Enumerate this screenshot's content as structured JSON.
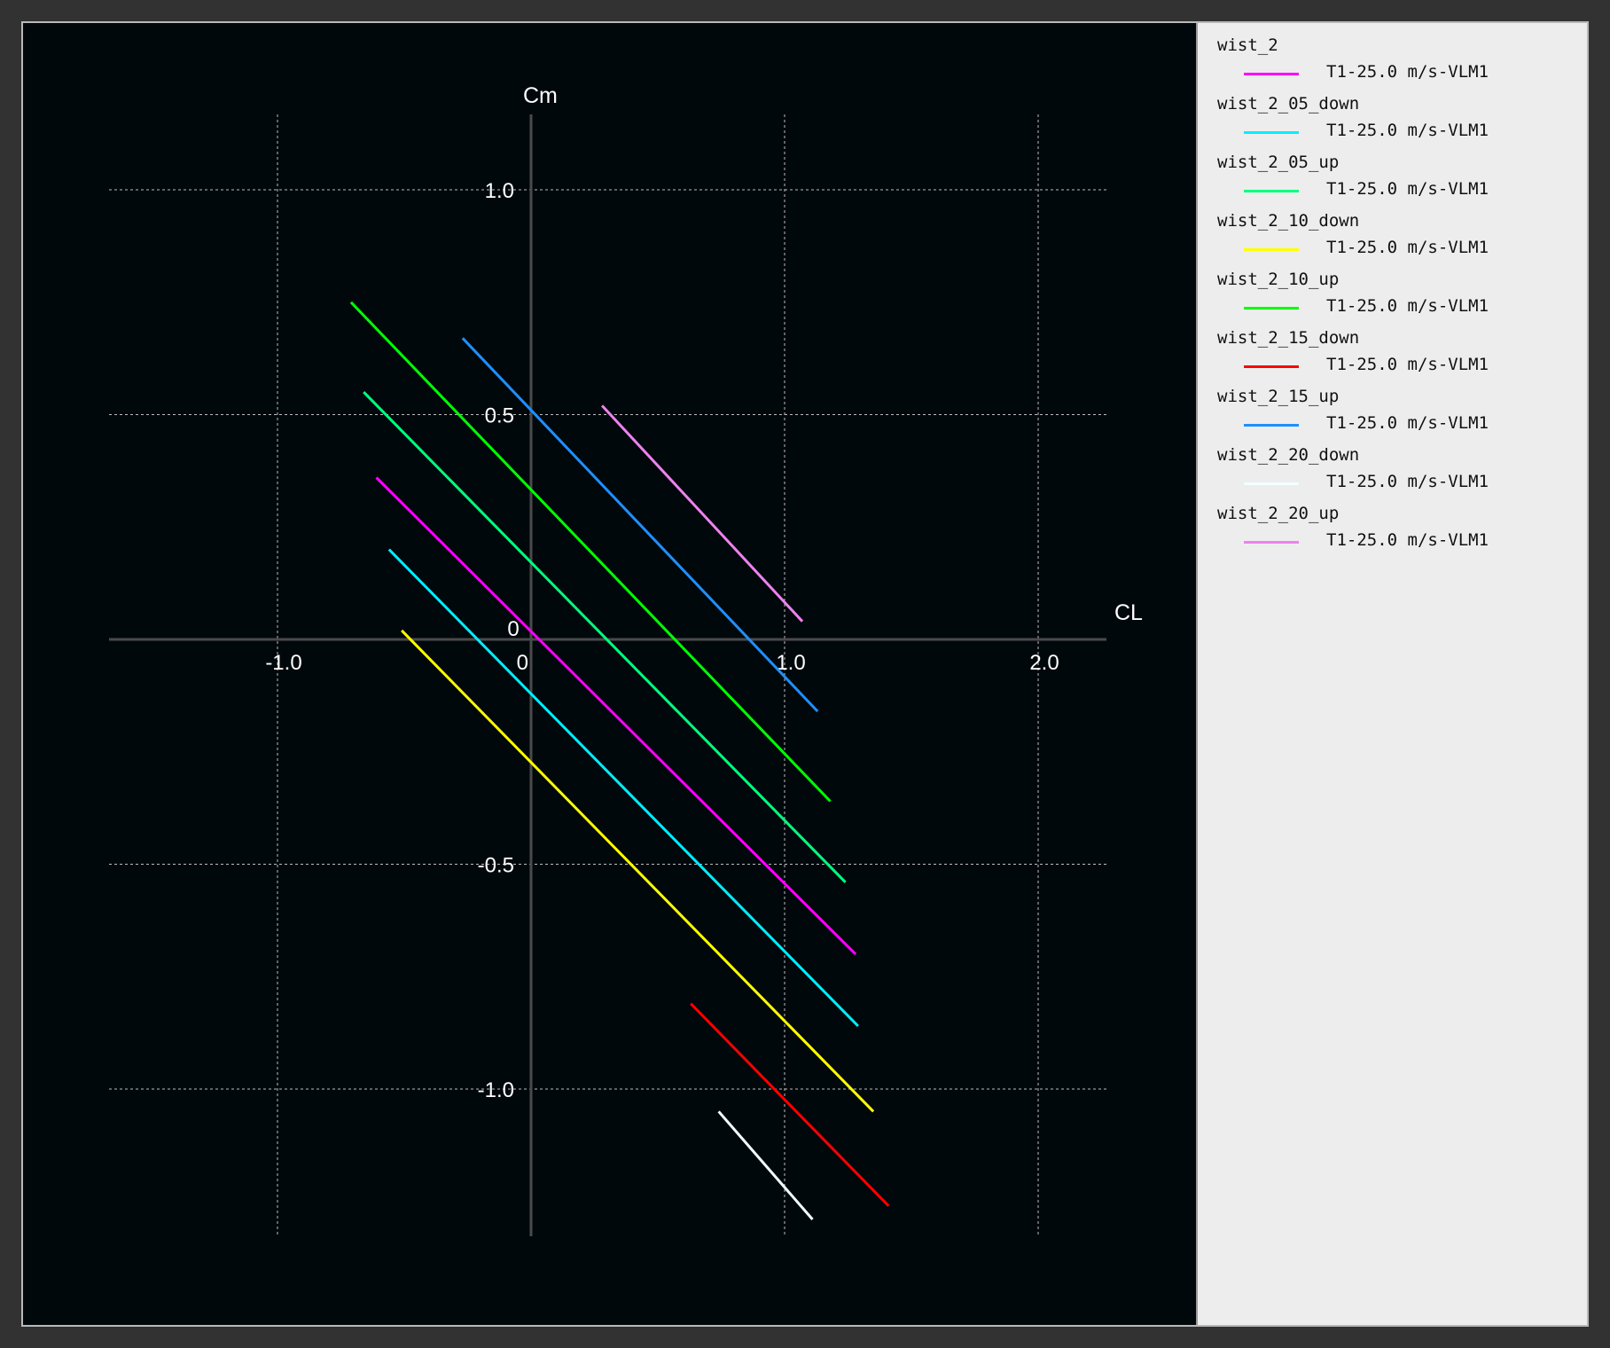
{
  "chart_data": {
    "type": "line",
    "xlabel": "CL",
    "ylabel": "Cm",
    "xlim": [
      -1.65,
      2.27
    ],
    "ylim": [
      -1.33,
      1.17
    ],
    "grid": true,
    "xticks": [
      {
        "value": -1.0,
        "label": "-1.0"
      },
      {
        "value": 0,
        "label": "0"
      },
      {
        "value": 1.0,
        "label": "1.0"
      },
      {
        "value": 2.0,
        "label": "2.0"
      }
    ],
    "yticks": [
      {
        "value": 1.0,
        "label": "1.0"
      },
      {
        "value": 0.5,
        "label": "0.5"
      },
      {
        "value": 0,
        "label": "0"
      },
      {
        "value": -0.5,
        "label": "-0.5"
      },
      {
        "value": -1.0,
        "label": "-1.0"
      }
    ],
    "legend_position": "right",
    "series": [
      {
        "name": "wist_2",
        "label": "T1-25.0 m/s-VLM1",
        "color": "#ff00ff",
        "x": [
          -0.61,
          1.28
        ],
        "y": [
          0.36,
          -0.7
        ]
      },
      {
        "name": "wist_2_05_down",
        "label": "T1-25.0 m/s-VLM1",
        "color": "#00eeff",
        "x": [
          -0.56,
          1.29
        ],
        "y": [
          0.2,
          -0.86
        ]
      },
      {
        "name": "wist_2_05_up",
        "label": "T1-25.0 m/s-VLM1",
        "color": "#00ff7f",
        "x": [
          -0.66,
          1.24
        ],
        "y": [
          0.55,
          -0.54
        ]
      },
      {
        "name": "wist_2_10_down",
        "label": "T1-25.0 m/s-VLM1",
        "color": "#ffff00",
        "x": [
          -0.51,
          1.35
        ],
        "y": [
          0.02,
          -1.05
        ]
      },
      {
        "name": "wist_2_10_up",
        "label": "T1-25.0 m/s-VLM1",
        "color": "#00ff00",
        "x": [
          -0.71,
          1.18
        ],
        "y": [
          0.75,
          -0.36
        ]
      },
      {
        "name": "wist_2_15_down",
        "label": "T1-25.0 m/s-VLM1",
        "color": "#ff0000",
        "x": [
          0.63,
          1.41
        ],
        "y": [
          -0.81,
          -1.26
        ]
      },
      {
        "name": "wist_2_15_up",
        "label": "T1-25.0 m/s-VLM1",
        "color": "#1e90ff",
        "x": [
          -0.27,
          1.13
        ],
        "y": [
          0.67,
          -0.16
        ]
      },
      {
        "name": "wist_2_20_down",
        "label": "T1-25.0 m/s-VLM1",
        "color": "#f0ffff",
        "x": [
          0.74,
          1.11
        ],
        "y": [
          -1.05,
          -1.29
        ]
      },
      {
        "name": "wist_2_20_up",
        "label": "T1-25.0 m/s-VLM1",
        "color": "#ee82ee",
        "x": [
          0.28,
          1.07
        ],
        "y": [
          0.52,
          0.04
        ]
      }
    ]
  }
}
